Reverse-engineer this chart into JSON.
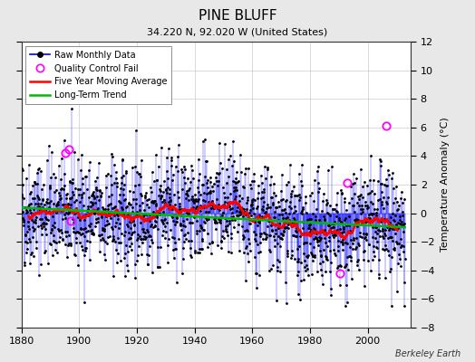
{
  "title": "PINE BLUFF",
  "subtitle": "34.220 N, 92.020 W (United States)",
  "credit": "Berkeley Earth",
  "ylabel": "Temperature Anomaly (°C)",
  "xlim": [
    1880,
    2015
  ],
  "ylim": [
    -8,
    12
  ],
  "yticks": [
    -8,
    -6,
    -4,
    -2,
    0,
    2,
    4,
    6,
    8,
    10,
    12
  ],
  "xticks": [
    1880,
    1900,
    1920,
    1940,
    1960,
    1980,
    2000
  ],
  "line_color": "#0000ff",
  "dot_color": "#000000",
  "ma_color": "#ff0000",
  "trend_color": "#00bb00",
  "qc_color": "#ff00ff",
  "background_color": "#e8e8e8",
  "plot_bg_color": "#ffffff",
  "seed": 42,
  "n_years_start": 1880,
  "n_years_end": 2012,
  "noise_std": 2.2,
  "ma_window": 60,
  "qc_positions": [
    [
      1895.2,
      4.2
    ],
    [
      1896.5,
      4.5
    ],
    [
      1897.0,
      -0.5
    ],
    [
      1990.5,
      -4.2
    ],
    [
      1993.0,
      2.1
    ],
    [
      2006.5,
      6.1
    ]
  ]
}
